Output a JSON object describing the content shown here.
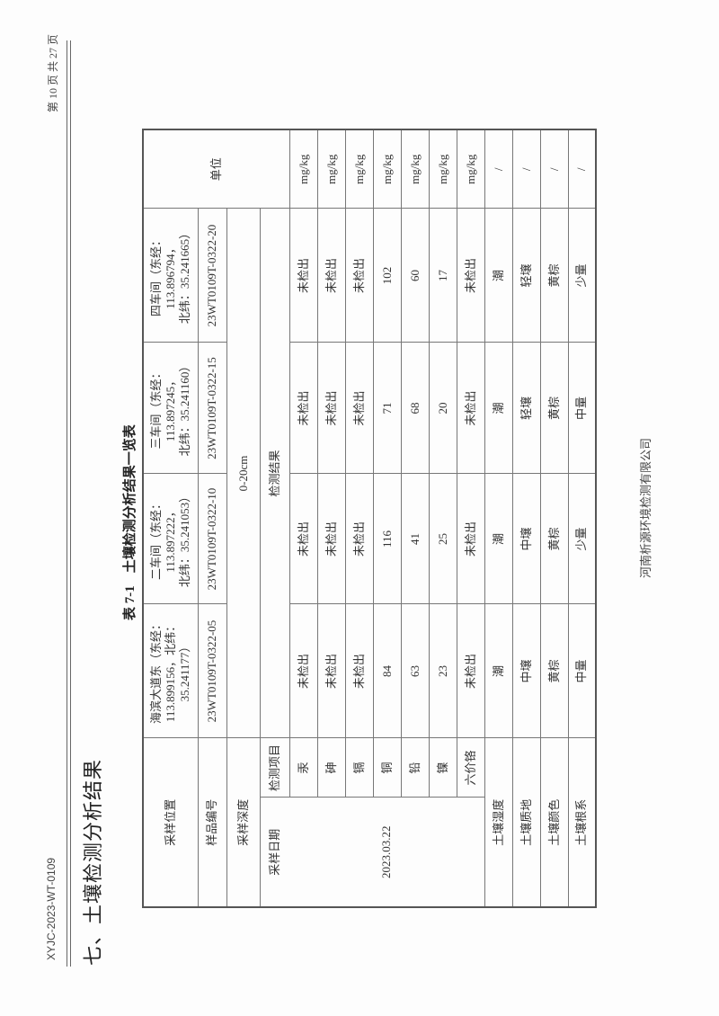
{
  "header": {
    "doc_code": "XYJC-2023-WT-0109",
    "page_info": "第 10 页 共 27 页"
  },
  "section_heading": "七、土壤检测分析结果",
  "table_title": {
    "number": "表 7-1",
    "text": "土壤检测分析结果一览表"
  },
  "table": {
    "labels": {
      "location": "采样位置",
      "sample_no": "样品编号",
      "depth": "采样深度",
      "date": "采样日期",
      "item": "检测项目",
      "result": "检测结果",
      "unit": "单位"
    },
    "samples": [
      {
        "location": "海滨大道东（东经：\n113.899156，北纬：\n35.241177）",
        "id": "23WT0109T-0322-05"
      },
      {
        "location": "二车间（东经：\n113.897222，\n北纬：35.241053）",
        "id": "23WT0109T-0322-10"
      },
      {
        "location": "三车间（东经：\n113.897245，\n北纬：35.241160）",
        "id": "23WT0109T-0322-15"
      },
      {
        "location": "四车间（东经：\n113.896794，\n北纬：35.241665）",
        "id": "23WT0109T-0322-20"
      }
    ],
    "depth_value": "0-20cm",
    "date_value": "2023.03.22",
    "analytes": [
      {
        "name": "汞",
        "values": [
          "未检出",
          "未检出",
          "未检出",
          "未检出"
        ],
        "unit": "mg/kg"
      },
      {
        "name": "砷",
        "values": [
          "未检出",
          "未检出",
          "未检出",
          "未检出"
        ],
        "unit": "mg/kg"
      },
      {
        "name": "镉",
        "values": [
          "未检出",
          "未检出",
          "未检出",
          "未检出"
        ],
        "unit": "mg/kg"
      },
      {
        "name": "铜",
        "values": [
          "84",
          "116",
          "71",
          "102"
        ],
        "unit": "mg/kg"
      },
      {
        "name": "铅",
        "values": [
          "63",
          "41",
          "68",
          "60"
        ],
        "unit": "mg/kg"
      },
      {
        "name": "镍",
        "values": [
          "23",
          "25",
          "20",
          "17"
        ],
        "unit": "mg/kg"
      },
      {
        "name": "六价铬",
        "values": [
          "未检出",
          "未检出",
          "未检出",
          "未检出"
        ],
        "unit": "mg/kg"
      }
    ],
    "properties": [
      {
        "name": "土壤湿度",
        "values": [
          "潮",
          "潮",
          "潮",
          "潮"
        ],
        "unit": "/"
      },
      {
        "name": "土壤质地",
        "values": [
          "中壤",
          "中壤",
          "轻壤",
          "轻壤"
        ],
        "unit": "/"
      },
      {
        "name": "土壤颜色",
        "values": [
          "黄棕",
          "黄棕",
          "黄棕",
          "黄棕"
        ],
        "unit": "/"
      },
      {
        "name": "土壤根系",
        "values": [
          "中量",
          "少量",
          "中量",
          "少量"
        ],
        "unit": "/"
      }
    ]
  },
  "footer": {
    "company": "河南析源环境检测有限公司"
  }
}
